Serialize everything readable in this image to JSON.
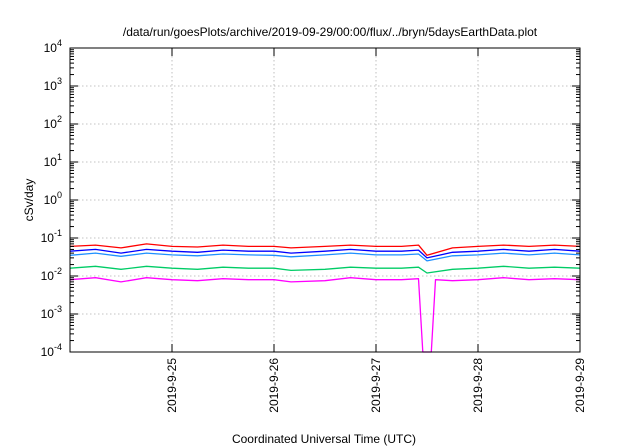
{
  "chart_data": {
    "type": "line",
    "title": "/data/run/goesPlots/archive/2019-09-29/00:00/flux/../bryn/5daysEarthData.plot",
    "xlabel": "Coordinated Universal Time (UTC)",
    "ylabel": "cSv/day",
    "yscale": "log",
    "ylim": [
      0.0001,
      10000
    ],
    "xlim": [
      "2019-09-24T00:00",
      "2019-09-29T00:00"
    ],
    "grid": true,
    "x_ticks": [
      "2019-9-25",
      "2019-9-26",
      "2019-9-27",
      "2019-9-28",
      "2019-9-29"
    ],
    "y_ticks": [
      {
        "base": "10",
        "exp": "-4",
        "value": 0.0001
      },
      {
        "base": "10",
        "exp": "-3",
        "value": 0.001
      },
      {
        "base": "10",
        "exp": "-2",
        "value": 0.01
      },
      {
        "base": "10",
        "exp": "-1",
        "value": 0.1
      },
      {
        "base": "10",
        "exp": "0",
        "value": 1
      },
      {
        "base": "10",
        "exp": "1",
        "value": 10
      },
      {
        "base": "10",
        "exp": "2",
        "value": 100
      },
      {
        "base": "10",
        "exp": "3",
        "value": 1000
      },
      {
        "base": "10",
        "exp": "4",
        "value": 10000
      }
    ],
    "series": [
      {
        "color": "#ff0000",
        "values": [
          [
            "2019-09-24T00:00",
            0.06
          ],
          [
            "2019-09-24T06:00",
            0.065
          ],
          [
            "2019-09-24T12:00",
            0.055
          ],
          [
            "2019-09-24T18:00",
            0.07
          ],
          [
            "2019-09-25T00:00",
            0.06
          ],
          [
            "2019-09-25T06:00",
            0.058
          ],
          [
            "2019-09-25T12:00",
            0.065
          ],
          [
            "2019-09-25T18:00",
            0.06
          ],
          [
            "2019-09-26T00:00",
            0.06
          ],
          [
            "2019-09-26T04:00",
            0.055
          ],
          [
            "2019-09-26T12:00",
            0.06
          ],
          [
            "2019-09-26T18:00",
            0.065
          ],
          [
            "2019-09-27T00:00",
            0.06
          ],
          [
            "2019-09-27T06:00",
            0.06
          ],
          [
            "2019-09-27T10:00",
            0.065
          ],
          [
            "2019-09-27T12:00",
            0.035
          ],
          [
            "2019-09-27T18:00",
            0.055
          ],
          [
            "2019-09-28T00:00",
            0.06
          ],
          [
            "2019-09-28T06:00",
            0.065
          ],
          [
            "2019-09-28T12:00",
            0.06
          ],
          [
            "2019-09-28T18:00",
            0.065
          ],
          [
            "2019-09-29T00:00",
            0.06
          ]
        ]
      },
      {
        "color": "#0000ff",
        "values": [
          [
            "2019-09-24T00:00",
            0.045
          ],
          [
            "2019-09-24T06:00",
            0.05
          ],
          [
            "2019-09-24T12:00",
            0.04
          ],
          [
            "2019-09-24T18:00",
            0.05
          ],
          [
            "2019-09-25T00:00",
            0.045
          ],
          [
            "2019-09-25T06:00",
            0.042
          ],
          [
            "2019-09-25T12:00",
            0.048
          ],
          [
            "2019-09-25T18:00",
            0.045
          ],
          [
            "2019-09-26T00:00",
            0.045
          ],
          [
            "2019-09-26T04:00",
            0.04
          ],
          [
            "2019-09-26T12:00",
            0.045
          ],
          [
            "2019-09-26T18:00",
            0.05
          ],
          [
            "2019-09-27T00:00",
            0.045
          ],
          [
            "2019-09-27T06:00",
            0.045
          ],
          [
            "2019-09-27T10:00",
            0.048
          ],
          [
            "2019-09-27T12:00",
            0.03
          ],
          [
            "2019-09-27T18:00",
            0.042
          ],
          [
            "2019-09-28T00:00",
            0.045
          ],
          [
            "2019-09-28T06:00",
            0.05
          ],
          [
            "2019-09-28T12:00",
            0.045
          ],
          [
            "2019-09-28T18:00",
            0.05
          ],
          [
            "2019-09-29T00:00",
            0.045
          ]
        ]
      },
      {
        "color": "#1e90ff",
        "values": [
          [
            "2019-09-24T00:00",
            0.035
          ],
          [
            "2019-09-24T06:00",
            0.04
          ],
          [
            "2019-09-24T12:00",
            0.033
          ],
          [
            "2019-09-24T18:00",
            0.04
          ],
          [
            "2019-09-25T00:00",
            0.036
          ],
          [
            "2019-09-25T06:00",
            0.034
          ],
          [
            "2019-09-25T12:00",
            0.038
          ],
          [
            "2019-09-25T18:00",
            0.036
          ],
          [
            "2019-09-26T00:00",
            0.035
          ],
          [
            "2019-09-26T04:00",
            0.032
          ],
          [
            "2019-09-26T12:00",
            0.036
          ],
          [
            "2019-09-26T18:00",
            0.04
          ],
          [
            "2019-09-27T00:00",
            0.036
          ],
          [
            "2019-09-27T06:00",
            0.036
          ],
          [
            "2019-09-27T10:00",
            0.038
          ],
          [
            "2019-09-27T12:00",
            0.025
          ],
          [
            "2019-09-27T18:00",
            0.034
          ],
          [
            "2019-09-28T00:00",
            0.036
          ],
          [
            "2019-09-28T06:00",
            0.04
          ],
          [
            "2019-09-28T12:00",
            0.036
          ],
          [
            "2019-09-28T18:00",
            0.04
          ],
          [
            "2019-09-29T00:00",
            0.036
          ]
        ]
      },
      {
        "color": "#00cc66",
        "values": [
          [
            "2019-09-24T00:00",
            0.016
          ],
          [
            "2019-09-24T06:00",
            0.018
          ],
          [
            "2019-09-24T12:00",
            0.015
          ],
          [
            "2019-09-24T18:00",
            0.018
          ],
          [
            "2019-09-25T00:00",
            0.016
          ],
          [
            "2019-09-25T06:00",
            0.015
          ],
          [
            "2019-09-25T12:00",
            0.017
          ],
          [
            "2019-09-25T18:00",
            0.016
          ],
          [
            "2019-09-26T00:00",
            0.016
          ],
          [
            "2019-09-26T04:00",
            0.014
          ],
          [
            "2019-09-26T12:00",
            0.015
          ],
          [
            "2019-09-26T18:00",
            0.017
          ],
          [
            "2019-09-27T00:00",
            0.016
          ],
          [
            "2019-09-27T06:00",
            0.016
          ],
          [
            "2019-09-27T10:00",
            0.017
          ],
          [
            "2019-09-27T12:00",
            0.012
          ],
          [
            "2019-09-27T18:00",
            0.015
          ],
          [
            "2019-09-28T00:00",
            0.016
          ],
          [
            "2019-09-28T06:00",
            0.018
          ],
          [
            "2019-09-28T12:00",
            0.016
          ],
          [
            "2019-09-28T18:00",
            0.017
          ],
          [
            "2019-09-29T00:00",
            0.016
          ]
        ]
      },
      {
        "color": "#ff00ff",
        "values": [
          [
            "2019-09-24T00:00",
            0.008
          ],
          [
            "2019-09-24T06:00",
            0.009
          ],
          [
            "2019-09-24T12:00",
            0.007
          ],
          [
            "2019-09-24T18:00",
            0.009
          ],
          [
            "2019-09-25T00:00",
            0.008
          ],
          [
            "2019-09-25T06:00",
            0.0075
          ],
          [
            "2019-09-25T12:00",
            0.0085
          ],
          [
            "2019-09-25T18:00",
            0.008
          ],
          [
            "2019-09-26T00:00",
            0.008
          ],
          [
            "2019-09-26T04:00",
            0.007
          ],
          [
            "2019-09-26T12:00",
            0.0075
          ],
          [
            "2019-09-26T18:00",
            0.009
          ],
          [
            "2019-09-27T00:00",
            0.008
          ],
          [
            "2019-09-27T06:00",
            0.008
          ],
          [
            "2019-09-27T10:00",
            0.0085
          ],
          [
            "2019-09-27T11:00",
            0.0001
          ],
          [
            "2019-09-27T13:00",
            0.0001
          ],
          [
            "2019-09-27T14:00",
            0.008
          ],
          [
            "2019-09-27T18:00",
            0.0075
          ],
          [
            "2019-09-28T00:00",
            0.008
          ],
          [
            "2019-09-28T06:00",
            0.009
          ],
          [
            "2019-09-28T12:00",
            0.008
          ],
          [
            "2019-09-28T18:00",
            0.0085
          ],
          [
            "2019-09-29T00:00",
            0.008
          ]
        ]
      }
    ]
  }
}
